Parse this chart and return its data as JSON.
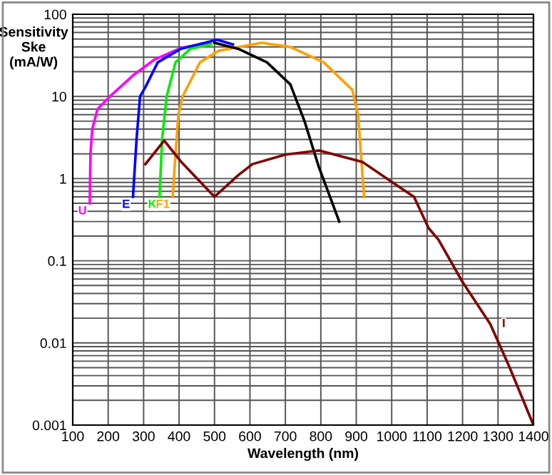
{
  "chart_data": {
    "type": "line",
    "xlabel": "Wavelength (nm)",
    "ylabel": "Sensitivity\nSke\n(mA/W)",
    "log": "y",
    "grid": true,
    "marker": "none",
    "line_style": "solid",
    "xlim": [
      100,
      1400
    ],
    "xticks": [
      100,
      200,
      300,
      400,
      500,
      600,
      700,
      800,
      900,
      1000,
      1100,
      1200,
      1300,
      1400
    ],
    "ylim": [
      0.001,
      100
    ],
    "yticks": [
      0.001,
      {
        "value": 0.002,
        "label": null
      },
      {
        "value": 0.003,
        "label": null
      },
      {
        "value": 0.004,
        "label": null
      },
      {
        "value": 0.005,
        "label": null
      },
      {
        "value": 0.006,
        "label": null
      },
      {
        "value": 0.007,
        "label": null
      },
      {
        "value": 0.008,
        "label": null
      },
      {
        "value": 0.009,
        "label": null
      },
      0.01,
      {
        "value": 0.02,
        "label": null
      },
      {
        "value": 0.03,
        "label": null
      },
      {
        "value": 0.04,
        "label": null
      },
      {
        "value": 0.05,
        "label": null
      },
      {
        "value": 0.06,
        "label": null
      },
      {
        "value": 0.07,
        "label": null
      },
      {
        "value": 0.08,
        "label": null
      },
      {
        "value": 0.09,
        "label": null
      },
      0.1,
      {
        "value": 0.2,
        "label": null
      },
      {
        "value": 0.3,
        "label": null
      },
      {
        "value": 0.4,
        "label": null
      },
      {
        "value": 0.5,
        "label": null
      },
      {
        "value": 0.6,
        "label": null
      },
      {
        "value": 0.7,
        "label": null
      },
      {
        "value": 0.8,
        "label": null
      },
      {
        "value": 0.9,
        "label": null
      },
      1,
      {
        "value": 2,
        "label": null
      },
      {
        "value": 3,
        "label": null
      },
      {
        "value": 4,
        "label": null
      },
      {
        "value": 5,
        "label": null
      },
      {
        "value": 6,
        "label": null
      },
      {
        "value": 7,
        "label": null
      },
      {
        "value": 8,
        "label": null
      },
      {
        "value": 9,
        "label": null
      },
      10,
      {
        "value": 20,
        "label": null
      },
      {
        "value": 30,
        "label": null
      },
      {
        "value": 40,
        "label": null
      },
      {
        "value": 50,
        "label": null
      },
      {
        "value": 60,
        "label": null
      },
      {
        "value": 70,
        "label": null
      },
      {
        "value": 80,
        "label": null
      },
      {
        "value": 90,
        "label": null
      },
      100
    ],
    "series": [
      {
        "name": "U",
        "color": "#ff00ff",
        "x": [
          148,
          150,
          155,
          170,
          205,
          270,
          330,
          406,
          487
        ],
        "values": [
          0.5,
          2,
          4,
          7,
          10,
          18,
          28,
          39,
          45
        ]
      },
      {
        "name": "E",
        "color": "#0000ff",
        "x": [
          270,
          280,
          290,
          305,
          340,
          405,
          507,
          552
        ],
        "values": [
          0.6,
          3,
          10,
          13,
          26,
          38,
          49,
          43
        ]
      },
      {
        "name": "K",
        "color": "#00ee00",
        "x": [
          345,
          352,
          365,
          390,
          432,
          491
        ],
        "values": [
          0.6,
          3,
          10,
          26,
          38,
          43
        ]
      },
      {
        "name": "F1",
        "color": "#ffa000",
        "x": [
          382,
          390,
          398,
          410,
          459,
          512,
          633,
          714,
          808,
          889,
          905,
          922
        ],
        "values": [
          0.6,
          2,
          6,
          10,
          26,
          36,
          45,
          40,
          26,
          12,
          6,
          0.6
        ]
      },
      {
        "color": "#000000",
        "x": [
          500,
          567,
          648,
          714,
          754,
          794,
          852
        ],
        "values": [
          45,
          38,
          26,
          14,
          5,
          1.4,
          0.3
        ]
      },
      {
        "name": "I",
        "color": "#800000",
        "x": [
          305,
          358,
          406,
          500,
          567,
          607,
          700,
          795,
          917,
          997,
          1063,
          1104,
          1132,
          1200,
          1278,
          1333,
          1400
        ],
        "values": [
          1.5,
          2.9,
          1.6,
          0.6,
          1.1,
          1.5,
          1.96,
          2.2,
          1.6,
          0.93,
          0.6,
          0.25,
          0.18,
          0.055,
          0.017,
          0.005,
          0.001
        ]
      }
    ]
  }
}
